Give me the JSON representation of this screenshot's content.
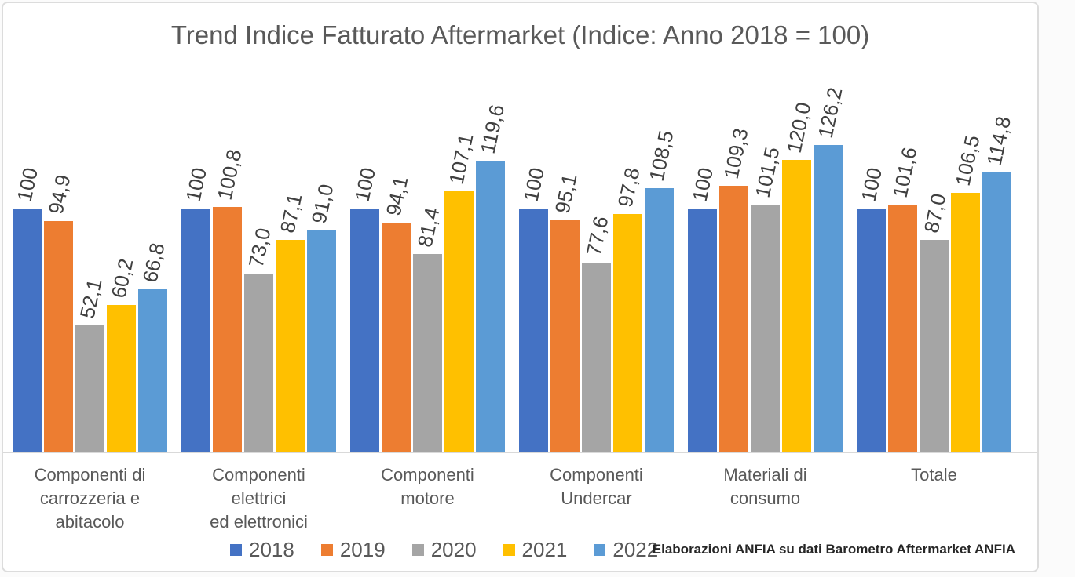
{
  "chart_data": {
    "type": "bar",
    "title": "Trend Indice Fatturato Aftermarket (Indice: Anno 2018 = 100)",
    "categories": [
      "Componenti di\ncarrozzeria e\nabitacolo",
      "Componenti\nelettrici\ned elettronici",
      "Componenti\nmotore",
      "Componenti\nUndercar",
      "Materiali di\nconsumo",
      "Totale"
    ],
    "series": [
      {
        "name": "2018",
        "color": "#4472C4",
        "values": [
          100,
          100,
          100,
          100,
          100,
          100
        ],
        "labels": [
          "100",
          "100",
          "100",
          "100",
          "100",
          "100"
        ]
      },
      {
        "name": "2019",
        "color": "#ED7D31",
        "values": [
          94.9,
          100.8,
          94.1,
          95.1,
          109.3,
          101.6
        ],
        "labels": [
          "94,9",
          "100,8",
          "94,1",
          "95,1",
          "109,3",
          "101,6"
        ]
      },
      {
        "name": "2020",
        "color": "#A5A5A5",
        "values": [
          52.1,
          73.0,
          81.4,
          77.6,
          101.5,
          87.0
        ],
        "labels": [
          "52,1",
          "73,0",
          "81,4",
          "77,6",
          "101,5",
          "87,0"
        ]
      },
      {
        "name": "2021",
        "color": "#FFC000",
        "values": [
          60.2,
          87.1,
          107.1,
          97.8,
          120.0,
          106.5
        ],
        "labels": [
          "60,2",
          "87,1",
          "107,1",
          "97,8",
          "120,0",
          "106,5"
        ]
      },
      {
        "name": "2022",
        "color": "#5B9BD5",
        "values": [
          66.8,
          91.0,
          119.6,
          108.5,
          126.2,
          114.8
        ],
        "labels": [
          "66,8",
          "91,0",
          "119,6",
          "108,5",
          "126,2",
          "114,8"
        ]
      }
    ],
    "legend": {
      "position": "bottom",
      "entries": [
        "2018",
        "2019",
        "2020",
        "2021",
        "2022"
      ]
    },
    "value_axis_visible": false,
    "gridlines": false,
    "data_label_rotation_deg": -78,
    "source_note": "Elaborazioni ANFIA su dati Barometro Aftermarket ANFIA"
  }
}
